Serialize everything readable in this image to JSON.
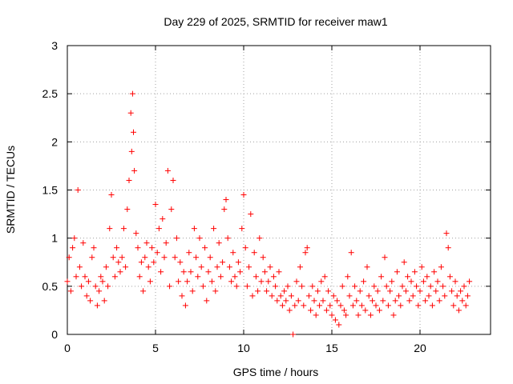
{
  "chart_data": {
    "type": "scatter",
    "title": "Day 229 of 2025, SRMTID for receiver maw1",
    "xlabel": "GPS time / hours",
    "ylabel": "SRMTID / TECUs",
    "xlim": [
      0,
      24
    ],
    "ylim": [
      0,
      3
    ],
    "xticks": [
      0,
      5,
      10,
      15,
      20
    ],
    "xtick_labels": [
      "0",
      "5",
      "10",
      "15",
      "20"
    ],
    "yticks": [
      0,
      0.5,
      1,
      1.5,
      2,
      2.5,
      3
    ],
    "ytick_labels": [
      "0",
      "0.5",
      "1",
      "1.5",
      "2",
      "2.5",
      "3"
    ],
    "grid": true,
    "marker": "+",
    "color": "#ff0000",
    "series": [
      {
        "name": "maw1",
        "x": [
          0.0,
          0.1,
          0.2,
          0.3,
          0.4,
          0.5,
          0.6,
          0.7,
          0.8,
          0.9,
          1.0,
          1.1,
          1.2,
          1.3,
          1.4,
          1.5,
          1.6,
          1.7,
          1.8,
          1.9,
          2.0,
          2.1,
          2.2,
          2.3,
          2.4,
          2.5,
          2.6,
          2.7,
          2.8,
          2.9,
          3.0,
          3.1,
          3.2,
          3.3,
          3.4,
          3.5,
          3.6,
          3.65,
          3.7,
          3.75,
          3.8,
          3.9,
          4.0,
          4.1,
          4.2,
          4.3,
          4.4,
          4.5,
          4.6,
          4.7,
          4.8,
          4.9,
          5.0,
          5.1,
          5.2,
          5.3,
          5.4,
          5.5,
          5.6,
          5.7,
          5.8,
          5.9,
          6.0,
          6.1,
          6.2,
          6.3,
          6.4,
          6.5,
          6.6,
          6.7,
          6.8,
          6.9,
          7.0,
          7.1,
          7.2,
          7.3,
          7.4,
          7.5,
          7.6,
          7.7,
          7.8,
          7.9,
          8.0,
          8.1,
          8.2,
          8.3,
          8.4,
          8.5,
          8.6,
          8.7,
          8.8,
          8.9,
          9.0,
          9.1,
          9.2,
          9.3,
          9.4,
          9.5,
          9.6,
          9.7,
          9.8,
          9.9,
          10.0,
          10.1,
          10.2,
          10.3,
          10.4,
          10.5,
          10.6,
          10.7,
          10.8,
          10.9,
          11.0,
          11.1,
          11.2,
          11.3,
          11.4,
          11.5,
          11.6,
          11.7,
          11.8,
          11.9,
          12.0,
          12.1,
          12.2,
          12.3,
          12.4,
          12.5,
          12.6,
          12.7,
          12.8,
          12.9,
          13.0,
          13.1,
          13.2,
          13.3,
          13.4,
          13.5,
          13.6,
          13.7,
          13.8,
          13.9,
          14.0,
          14.1,
          14.2,
          14.3,
          14.4,
          14.5,
          14.6,
          14.7,
          14.8,
          14.9,
          15.0,
          15.1,
          15.2,
          15.3,
          15.4,
          15.5,
          15.6,
          15.7,
          15.8,
          15.9,
          16.0,
          16.1,
          16.2,
          16.3,
          16.4,
          16.5,
          16.6,
          16.7,
          16.8,
          16.9,
          17.0,
          17.1,
          17.2,
          17.3,
          17.4,
          17.5,
          17.6,
          17.7,
          17.8,
          17.9,
          18.0,
          18.1,
          18.2,
          18.3,
          18.4,
          18.5,
          18.6,
          18.7,
          18.8,
          18.9,
          19.0,
          19.1,
          19.2,
          19.3,
          19.4,
          19.5,
          19.6,
          19.7,
          19.8,
          19.9,
          20.0,
          20.1,
          20.2,
          20.3,
          20.4,
          20.5,
          20.6,
          20.7,
          20.8,
          20.9,
          21.0,
          21.1,
          21.2,
          21.3,
          21.4,
          21.5,
          21.6,
          21.7,
          21.8,
          21.9,
          22.0,
          22.1,
          22.2,
          22.3,
          22.4,
          22.5,
          22.6,
          22.7,
          22.8
        ],
        "y": [
          0.55,
          0.8,
          0.45,
          0.9,
          1.0,
          0.6,
          1.5,
          0.7,
          0.5,
          0.95,
          0.6,
          0.4,
          0.55,
          0.35,
          0.8,
          0.9,
          0.5,
          0.3,
          0.45,
          0.6,
          0.55,
          0.35,
          0.7,
          0.5,
          1.1,
          1.45,
          0.8,
          0.6,
          0.9,
          0.75,
          0.65,
          0.8,
          1.1,
          0.7,
          1.3,
          1.6,
          2.3,
          1.9,
          2.5,
          2.1,
          1.7,
          1.05,
          0.9,
          0.6,
          0.75,
          0.45,
          0.8,
          0.95,
          0.7,
          0.55,
          0.9,
          0.75,
          1.35,
          0.85,
          1.1,
          0.65,
          1.2,
          0.8,
          0.95,
          1.7,
          0.5,
          1.3,
          1.6,
          0.8,
          1.0,
          0.55,
          0.75,
          0.4,
          0.65,
          0.3,
          0.55,
          0.85,
          0.65,
          0.45,
          1.1,
          0.8,
          0.6,
          1.0,
          0.7,
          0.5,
          0.9,
          0.35,
          0.65,
          0.8,
          0.55,
          1.1,
          0.45,
          0.7,
          0.95,
          0.6,
          0.75,
          1.3,
          1.4,
          1.0,
          0.7,
          0.55,
          0.85,
          0.6,
          0.5,
          0.75,
          0.65,
          1.1,
          1.45,
          0.9,
          0.5,
          0.7,
          1.25,
          0.4,
          0.85,
          0.6,
          0.45,
          1.0,
          0.55,
          0.8,
          0.65,
          0.45,
          0.55,
          0.7,
          0.4,
          0.6,
          0.5,
          0.35,
          0.65,
          0.4,
          0.3,
          0.45,
          0.35,
          0.5,
          0.25,
          0.4,
          0.0,
          0.3,
          0.55,
          0.35,
          0.7,
          0.5,
          0.3,
          0.85,
          0.9,
          0.4,
          0.25,
          0.5,
          0.35,
          0.2,
          0.45,
          0.3,
          0.55,
          0.35,
          0.6,
          0.25,
          0.45,
          0.3,
          0.2,
          0.4,
          0.15,
          0.35,
          0.1,
          0.3,
          0.5,
          0.25,
          0.2,
          0.6,
          0.4,
          0.85,
          0.3,
          0.5,
          0.35,
          0.2,
          0.45,
          0.3,
          0.55,
          0.25,
          0.7,
          0.4,
          0.2,
          0.35,
          0.5,
          0.3,
          0.45,
          0.25,
          0.6,
          0.35,
          0.8,
          0.5,
          0.3,
          0.45,
          0.55,
          0.2,
          0.35,
          0.65,
          0.4,
          0.3,
          0.5,
          0.75,
          0.45,
          0.6,
          0.35,
          0.55,
          0.4,
          0.65,
          0.5,
          0.3,
          0.45,
          0.7,
          0.55,
          0.35,
          0.6,
          0.4,
          0.5,
          0.3,
          0.65,
          0.45,
          0.55,
          0.35,
          0.7,
          0.5,
          0.4,
          1.05,
          0.9,
          0.6,
          0.45,
          0.3,
          0.55,
          0.4,
          0.25,
          0.45,
          0.35,
          0.5,
          0.3,
          0.4,
          0.55
        ]
      }
    ]
  }
}
